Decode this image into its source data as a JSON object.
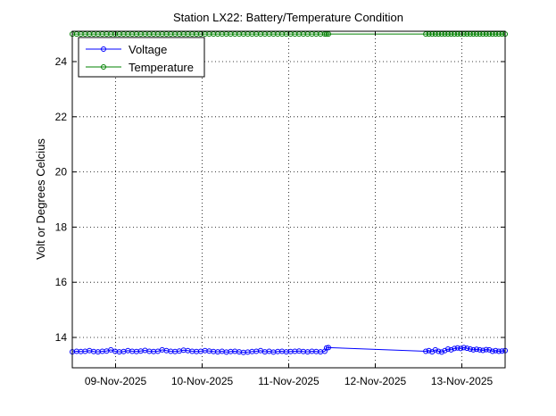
{
  "chart_data": {
    "type": "line",
    "title": "Station LX22: Battery/Temperature Condition",
    "xlabel": "",
    "ylabel": "Volt or Degrees Celcius",
    "x_tick_labels": [
      "09-Nov-2025",
      "10-Nov-2025",
      "11-Nov-2025",
      "12-Nov-2025",
      "13-Nov-2025"
    ],
    "x_ticks": [
      "2025-11-09",
      "2025-11-10",
      "2025-11-11",
      "2025-11-12",
      "2025-11-13"
    ],
    "xlim": [
      "2025-11-08 12:00",
      "2025-11-13 12:00"
    ],
    "y_ticks": [
      14,
      16,
      18,
      20,
      22,
      24
    ],
    "ylim": [
      12.9,
      25.1
    ],
    "grid": true,
    "legend_position": "top-left",
    "series": [
      {
        "name": "Voltage",
        "color": "#0000ff",
        "segments": [
          {
            "x_start": "2025-11-08 12:00",
            "x_end": "2025-11-11 10:00",
            "values": [
              13.48,
              13.5,
              13.49,
              13.5,
              13.52,
              13.49,
              13.48,
              13.5,
              13.51,
              13.55,
              13.5,
              13.48,
              13.49,
              13.52,
              13.5,
              13.49,
              13.51,
              13.53,
              13.5,
              13.49,
              13.5,
              13.55,
              13.52,
              13.5,
              13.49,
              13.51,
              13.54,
              13.52,
              13.5,
              13.49,
              13.5,
              13.52,
              13.51,
              13.49,
              13.48,
              13.5,
              13.47,
              13.49,
              13.5,
              13.48,
              13.46,
              13.47,
              13.49,
              13.5,
              13.52,
              13.48,
              13.5,
              13.47,
              13.49,
              13.5,
              13.48,
              13.49,
              13.5,
              13.51,
              13.49,
              13.48,
              13.5,
              13.49,
              13.48,
              13.5
            ]
          },
          {
            "x_start": "2025-11-11 10:30",
            "x_end": "2025-11-11 11:00",
            "values": [
              13.62,
              13.63
            ]
          },
          {
            "x_start": "2025-11-12 14:00",
            "x_end": "2025-11-13 12:00",
            "values": [
              13.5,
              13.52,
              13.48,
              13.55,
              13.5,
              13.47,
              13.52,
              13.58,
              13.55,
              13.6,
              13.62,
              13.6,
              13.63,
              13.61,
              13.58,
              13.55,
              13.57,
              13.55,
              13.53,
              13.56,
              13.55,
              13.5,
              13.52,
              13.5,
              13.51,
              13.52
            ]
          }
        ]
      },
      {
        "name": "Temperature",
        "color": "#008000",
        "segments": [
          {
            "x_start": "2025-11-08 12:00",
            "x_end": "2025-11-11 10:00",
            "values": [
              25,
              25,
              25,
              25,
              25,
              25,
              25,
              25,
              25,
              25,
              25,
              25,
              25,
              25,
              25,
              25,
              25,
              25,
              25,
              25,
              25,
              25,
              25,
              25,
              25,
              25,
              25,
              25,
              25,
              25,
              25,
              25,
              25,
              25,
              25,
              25,
              25,
              25,
              25,
              25,
              25,
              25,
              25,
              25,
              25,
              25,
              25,
              25,
              25,
              25,
              25,
              25,
              25,
              25,
              25,
              25,
              25,
              25,
              25,
              25
            ]
          },
          {
            "x_start": "2025-11-11 10:30",
            "x_end": "2025-11-11 11:00",
            "values": [
              25,
              25
            ]
          },
          {
            "x_start": "2025-11-12 14:00",
            "x_end": "2025-11-13 12:00",
            "values": [
              25,
              25,
              25,
              25,
              25,
              25,
              25,
              25,
              25,
              25,
              25,
              25,
              25,
              25,
              25,
              25,
              25,
              25,
              25,
              25,
              25,
              25,
              25,
              25,
              25,
              25
            ]
          }
        ]
      }
    ]
  }
}
